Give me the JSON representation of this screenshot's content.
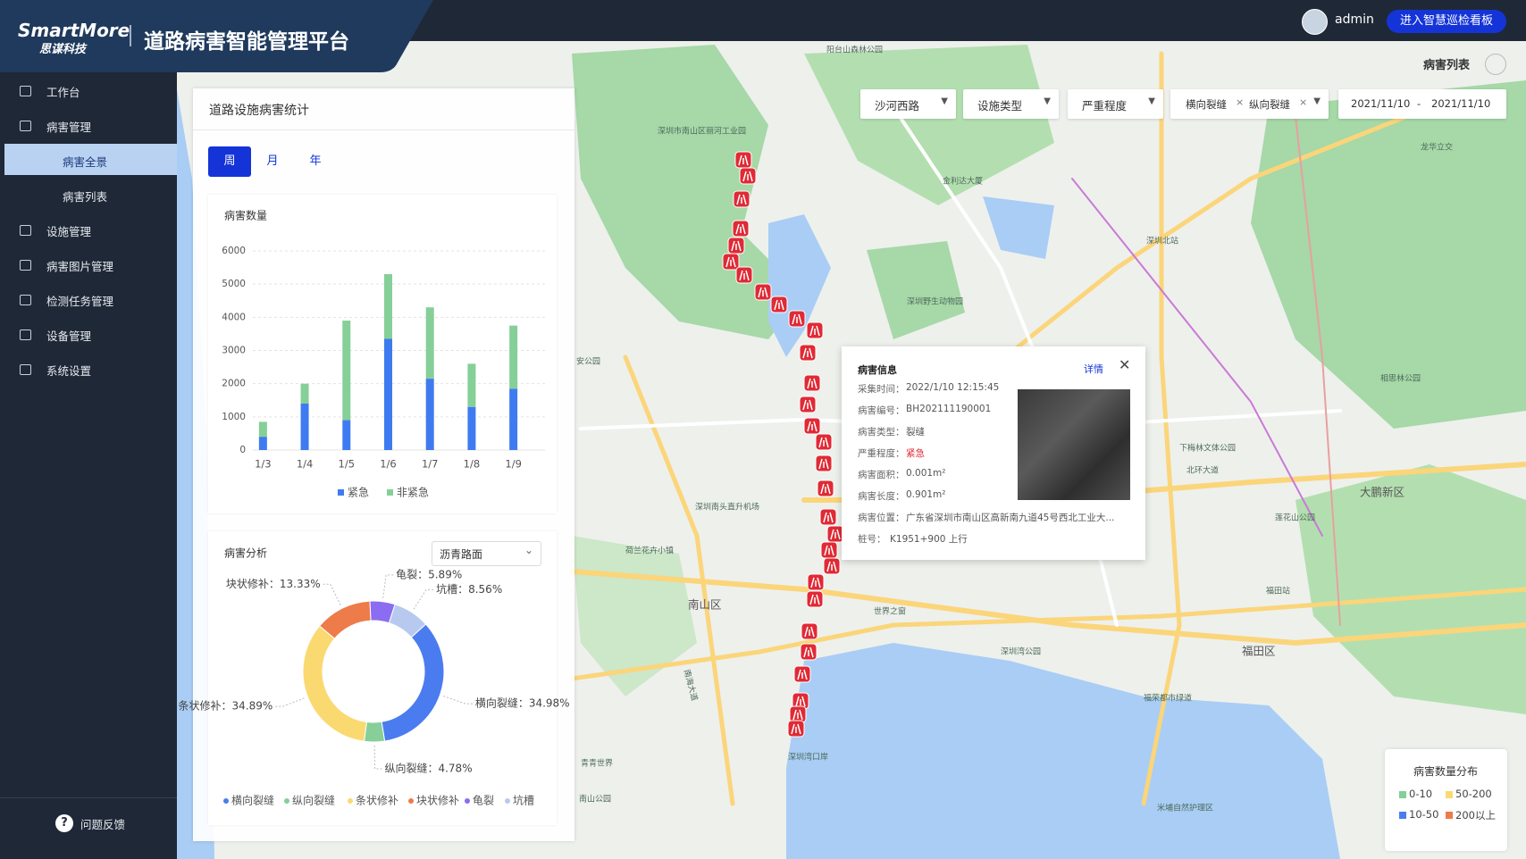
{
  "header": {
    "brand": "SmartMore",
    "brand_sub": "思谋科技",
    "title": "道路病害智能管理平台",
    "user": "admin",
    "button": "进入智慧巡检看板"
  },
  "sidebar": {
    "items": [
      {
        "label": "工作台"
      },
      {
        "label": "病害管理",
        "children": [
          "病害全景",
          "病害列表"
        ]
      },
      {
        "label": "设施管理"
      },
      {
        "label": "病害图片管理"
      },
      {
        "label": "检测任务管理"
      },
      {
        "label": "设备管理"
      },
      {
        "label": "系统设置"
      }
    ],
    "feedback": "问题反馈"
  },
  "panel": {
    "title": "道路设施病害统计",
    "tabs": [
      "周",
      "月",
      "年"
    ],
    "pie_select": "沥青路面"
  },
  "chart_data": [
    {
      "type": "bar",
      "stacked": true,
      "title": "病害数量",
      "categories": [
        "1/3",
        "1/4",
        "1/5",
        "1/6",
        "1/7",
        "1/8",
        "1/9"
      ],
      "series": [
        {
          "name": "紧急",
          "color": "#3f7bf0",
          "values": [
            400,
            1400,
            900,
            3350,
            2150,
            1300,
            1850
          ]
        },
        {
          "name": "非紧急",
          "color": "#86cf98",
          "values": [
            450,
            600,
            3000,
            1950,
            2150,
            1300,
            1900
          ]
        }
      ],
      "ylim": [
        0,
        6000
      ],
      "yticks": [
        0,
        1000,
        2000,
        3000,
        4000,
        5000,
        6000
      ],
      "grid": true
    },
    {
      "type": "pie",
      "donut": true,
      "title": "病害分析",
      "categories": [
        "横向裂缝",
        "纵向裂缝",
        "条状修补",
        "块状修补",
        "龟裂",
        "坑槽"
      ],
      "values": [
        34.98,
        4.78,
        34.89,
        13.33,
        5.89,
        8.56
      ],
      "value_labels": [
        "横向裂缝：34.98%",
        "纵向裂缝：4.78%",
        "条状修补：34.89%",
        "块状修补：13.33%",
        "龟裂：5.89%",
        "坑槽：8.56%"
      ],
      "colors": [
        "#4a7cf0",
        "#86cf98",
        "#fbd971",
        "#ee7b4a",
        "#8c6cf0",
        "#b7c9ef"
      ]
    }
  ],
  "map": {
    "list_title": "病害列表",
    "filters": [
      "沙河西路",
      "设施类型",
      "严重程度"
    ],
    "tags": [
      "横向裂缝",
      "纵向裂缝"
    ],
    "date_from": "2021/11/10",
    "date_sep": "-",
    "date_to": "2021/11/10",
    "places": [
      "阳台山森林公园",
      "深圳市南山区丽河工业园",
      "金利达大厦",
      "深圳北站",
      "深圳野生动物园",
      "龙华立交",
      "相思林公园",
      "下梅林文体公园",
      "北环大道",
      "大鹏新区",
      "莲花山公园",
      "福田站",
      "深圳南头直升机场",
      "荷兰花卉小镇",
      "南山区",
      "世界之窗",
      "深圳湾公园",
      "福田区",
      "福荣都市绿道",
      "深圳湾口岸",
      "米埔自然护理区",
      "青青世界",
      "南山公园",
      "南海大道",
      "安公园"
    ]
  },
  "popup": {
    "title": "病害信息",
    "link": "详情",
    "fields": [
      {
        "label": "采集时间：",
        "value": "2022/1/10 12:15:45"
      },
      {
        "label": "病害编号：",
        "value": "BH202111190001"
      },
      {
        "label": "病害类型：",
        "value": "裂缝"
      },
      {
        "label": "严重程度：",
        "value": "紧急"
      },
      {
        "label": "病害面积：",
        "value": "0.001m²"
      },
      {
        "label": "病害长度：",
        "value": "0.901m²"
      },
      {
        "label": "病害位置：",
        "value": "广东省深圳市南山区高新南九道45号西北工业大..."
      },
      {
        "label": "桩号：",
        "value": "K1951+900 上行"
      }
    ]
  },
  "legend": {
    "title": "病害数量分布",
    "items": [
      {
        "label": "0-10",
        "color": "#86cf98"
      },
      {
        "label": "50-200",
        "color": "#fbd971"
      },
      {
        "label": "10-50",
        "color": "#4a7cf0"
      },
      {
        "label": "200以上",
        "color": "#ee7b4a"
      }
    ]
  }
}
